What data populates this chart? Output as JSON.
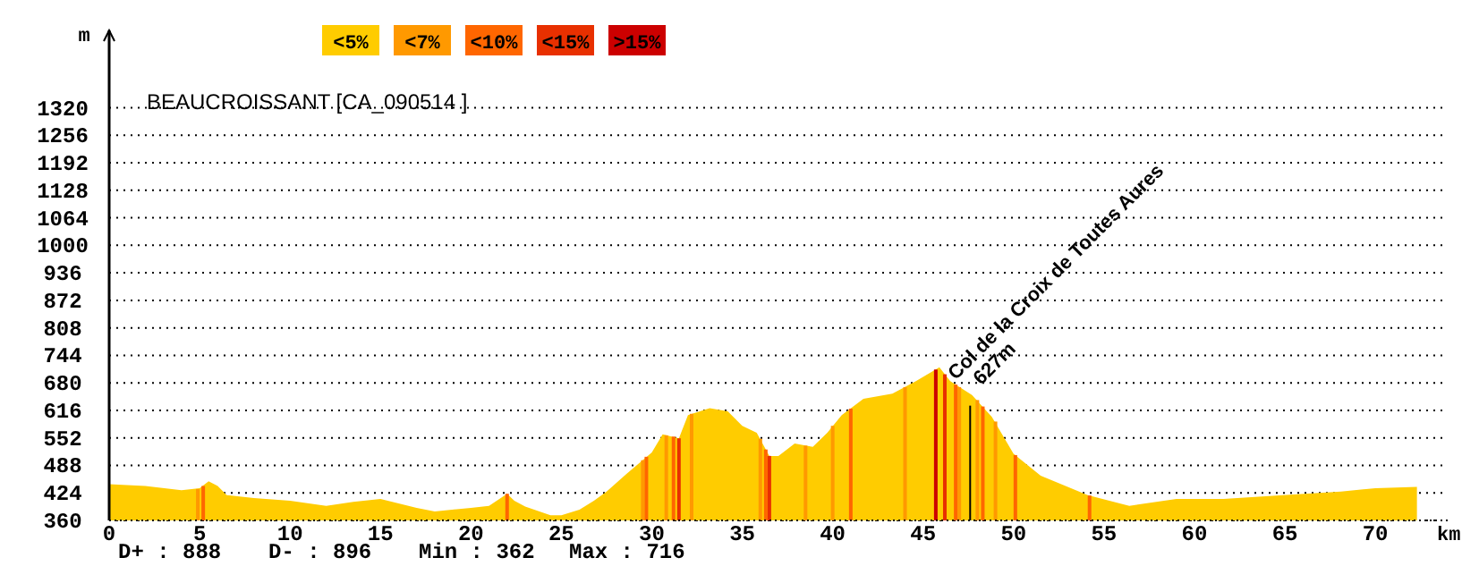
{
  "chart_data": {
    "type": "area",
    "title": "BEAUCROISSANT [CA_090514 ]",
    "xlabel": "km",
    "ylabel": "m",
    "xlim": [
      0,
      74
    ],
    "ylim": [
      360,
      1500
    ],
    "xticks": [
      0,
      5,
      10,
      15,
      20,
      25,
      30,
      35,
      40,
      45,
      50,
      55,
      60,
      65,
      70
    ],
    "yticks": [
      360,
      424,
      488,
      552,
      616,
      680,
      744,
      808,
      872,
      936,
      1000,
      1064,
      1128,
      1192,
      1256,
      1320
    ],
    "grid": "y",
    "legend": "top",
    "series": [
      {
        "name": "<5%",
        "color": "#ffcc00",
        "x": [
          0,
          2,
          4,
          5,
          5.5,
          6,
          6.5,
          8,
          10,
          12,
          13.5,
          15,
          17,
          18,
          20,
          21,
          22,
          22.4,
          23,
          24.4,
          25,
          26,
          26.8,
          27.5,
          28.6,
          30,
          30.6,
          31.5,
          32,
          33.2,
          34.2,
          35,
          35.8,
          36.5,
          37,
          37.9,
          38.9,
          39.7,
          40.5,
          41.7,
          43.3,
          44.6,
          45.9,
          46.5,
          47.7,
          48.8,
          50,
          51.5,
          54.1,
          56.4,
          59,
          61.6,
          64.9,
          68.1,
          70,
          72.3
        ],
        "values": [
          444,
          440,
          430,
          435,
          451,
          440,
          419,
          412,
          406,
          394,
          403,
          410,
          389,
          381,
          389,
          394,
          422,
          406,
          392,
          372,
          372,
          385,
          406,
          427,
          468,
          518,
          560,
          551,
          605,
          621,
          614,
          580,
          564,
          510,
          510,
          539,
          531,
          564,
          605,
          643,
          655,
          684,
          716,
          684,
          652,
          601,
          515,
          464,
          419,
          394,
          410,
          410,
          419,
          427,
          435,
          438
        ]
      },
      {
        "name": "<7%",
        "type": "bar",
        "color": "#ff9900",
        "x": [
          4.9,
          29.5,
          30.8,
          32.2,
          36,
          38.5,
          40,
          44,
          47,
          48,
          49
        ],
        "values": [
          433,
          500,
          558,
          608,
          550,
          534,
          580,
          670,
          670,
          640,
          590
        ]
      },
      {
        "name": "<10%",
        "type": "bar",
        "color": "#ff6600",
        "x": [
          5.2,
          22,
          29.7,
          31.2,
          36.3,
          41,
          46.8,
          48.3,
          50.1,
          54.2
        ],
        "values": [
          440,
          422,
          508,
          555,
          525,
          620,
          676,
          625,
          512,
          418
        ]
      },
      {
        "name": "<15%",
        "type": "bar",
        "color": "#e83000",
        "x": [
          31.5,
          36.5,
          46.2
        ],
        "values": [
          551,
          510,
          700
        ]
      },
      {
        "name": ">15%",
        "type": "bar",
        "color": "#cc0000",
        "x": [
          45.7
        ],
        "values": [
          711
        ]
      }
    ],
    "annotations": [
      {
        "text": "Col de la Croix de Toutes Aures\n627m",
        "x": 47.6,
        "y": 627
      },
      "D+ : 888",
      "D- : 896",
      "Min : 362",
      "Max : 716"
    ]
  }
}
